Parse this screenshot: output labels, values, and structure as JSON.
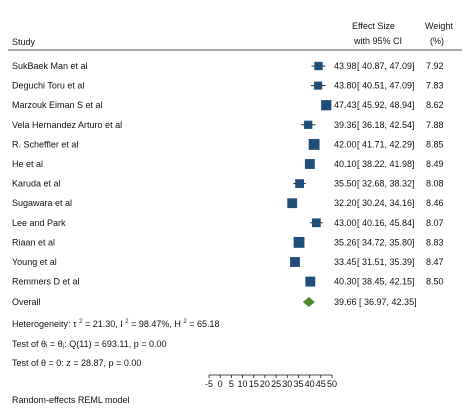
{
  "chart_data": {
    "type": "forest",
    "header": {
      "study": "Study",
      "effect_line1": "Effect Size",
      "effect_line2": "with 95% CI",
      "weight_line1": "Weight",
      "weight_line2": "(%)"
    },
    "studies": [
      {
        "name": "SukBaek Man et al",
        "es": 43.98,
        "lo": 40.87,
        "hi": 47.09,
        "weight": 7.92
      },
      {
        "name": "Deguchi Toru et al",
        "es": 43.8,
        "lo": 40.51,
        "hi": 47.09,
        "weight": 7.83
      },
      {
        "name": "Marzouk Eiman S et al",
        "es": 47.43,
        "lo": 45.92,
        "hi": 48.94,
        "weight": 8.62
      },
      {
        "name": "Vela Hernandez Arturo et al",
        "es": 39.36,
        "lo": 36.18,
        "hi": 42.54,
        "weight": 7.88
      },
      {
        "name": "R. Scheffler et al",
        "es": 42.0,
        "lo": 41.71,
        "hi": 42.29,
        "weight": 8.85
      },
      {
        "name": "He et al",
        "es": 40.1,
        "lo": 38.22,
        "hi": 41.98,
        "weight": 8.49
      },
      {
        "name": "Karuda et al",
        "es": 35.5,
        "lo": 32.68,
        "hi": 38.32,
        "weight": 8.08
      },
      {
        "name": "Sugawara et al",
        "es": 32.2,
        "lo": 30.24,
        "hi": 34.16,
        "weight": 8.46
      },
      {
        "name": "Lee and Park",
        "es": 43.0,
        "lo": 40.16,
        "hi": 45.84,
        "weight": 8.07
      },
      {
        "name": "Riaan et al",
        "es": 35.26,
        "lo": 34.72,
        "hi": 35.8,
        "weight": 8.83
      },
      {
        "name": "Young et al",
        "es": 33.45,
        "lo": 31.51,
        "hi": 35.39,
        "weight": 8.47
      },
      {
        "name": "Remmers D et al",
        "es": 40.3,
        "lo": 38.45,
        "hi": 42.15,
        "weight": 8.5
      }
    ],
    "overall": {
      "name": "Overall",
      "es": 39.66,
      "lo": 36.97,
      "hi": 42.35
    },
    "stats": {
      "heterogeneity_prefix": "Heterogeneity: τ",
      "tau2": "= 21.30, I",
      "i2": "= 98.47%, H",
      "h2": "= 65.18",
      "sup": "2",
      "homogeneity": "Test of θᵢ = θⱼ: Q(11) = 693.11, p = 0.00",
      "effect_test": "Test of θ = 0: z = 28.87, p = 0.00"
    },
    "x_ticks": [
      -5,
      0,
      5,
      10,
      15,
      20,
      25,
      30,
      35,
      40,
      45,
      50
    ],
    "xlim": [
      -5,
      50
    ],
    "footnote": "Random-effects REML model",
    "colors": {
      "marker": "#1f4e79",
      "diamond": "#4a8a2a",
      "line": "#111111"
    }
  }
}
